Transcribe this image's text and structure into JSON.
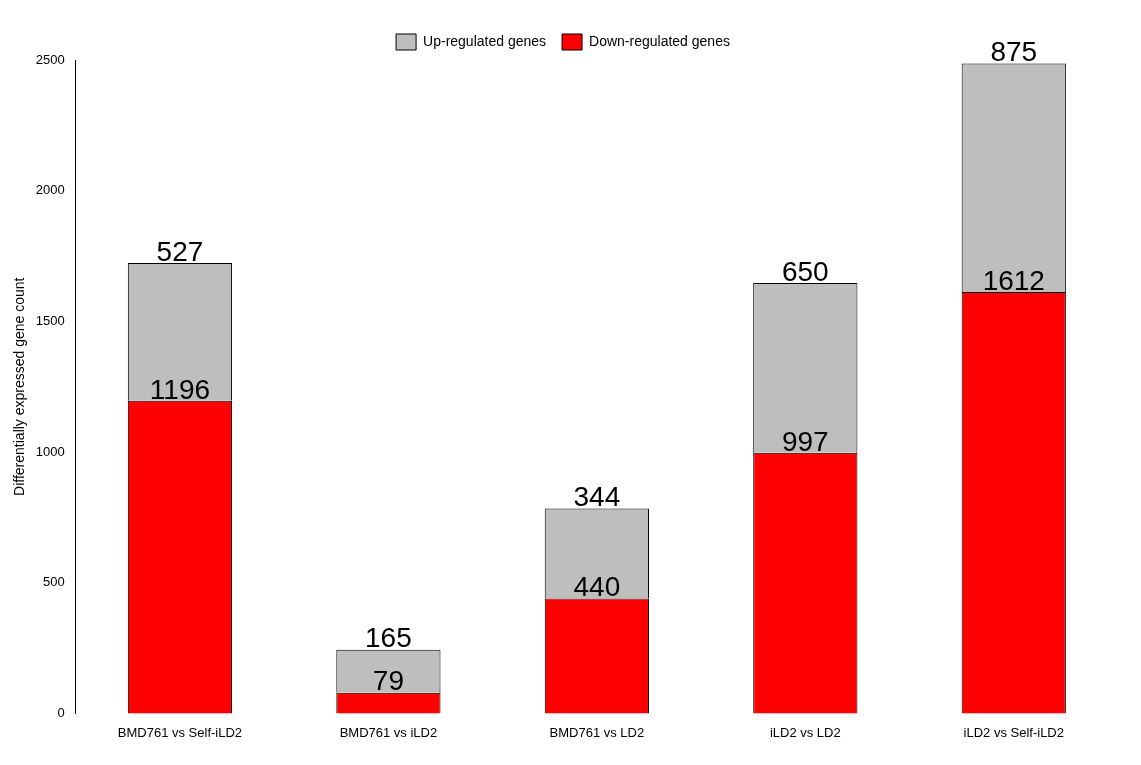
{
  "chart_data": {
    "type": "bar",
    "ylabel": "Differentially expressed gene count",
    "categories": [
      "BMD761 vs Self-iLD2",
      "BMD761 vs iLD2",
      "BMD761 vs LD2",
      "iLD2 vs LD2",
      "iLD2 vs Self-iLD2"
    ],
    "series": [
      {
        "name": "Down-regulated genes",
        "color": "#ff0000",
        "values": [
          1196,
          79,
          440,
          997,
          1612
        ]
      },
      {
        "name": "Up-regulated genes",
        "color": "#bebebe",
        "values": [
          527,
          165,
          344,
          650,
          875
        ]
      }
    ],
    "stacked": true,
    "data_labels": true,
    "legend": "top",
    "grid": false,
    "ylim": [
      0,
      2500
    ],
    "yticks": [
      0,
      500,
      1000,
      1500,
      2000,
      2500
    ]
  }
}
